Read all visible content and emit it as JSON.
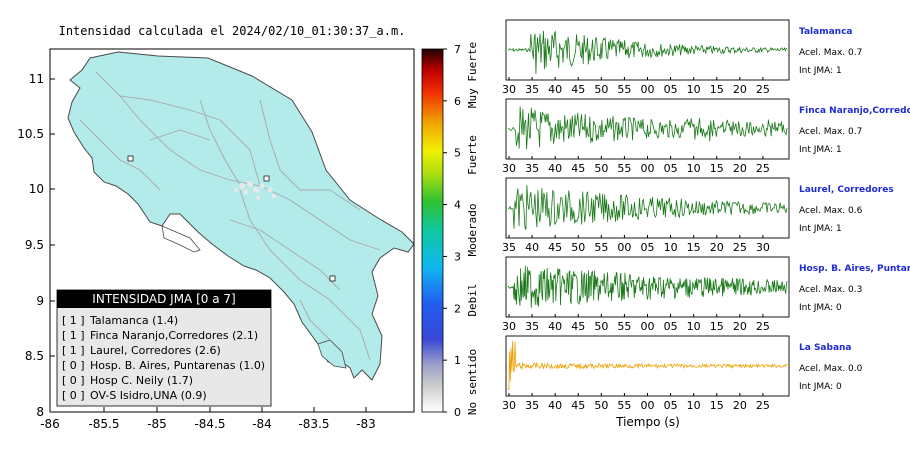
{
  "map": {
    "title": "Intensidad calculada el 2024/02/10_01:30:37_a.m.",
    "x_ticks": [
      "-86",
      "-85.5",
      "-85",
      "-84.5",
      "-84",
      "-83.5",
      "-83"
    ],
    "y_ticks": [
      "11",
      "10.5",
      "10",
      "9.5",
      "9",
      "8.5",
      "8"
    ],
    "land_color": "#b3eaea",
    "sea_color": "#ffffff"
  },
  "colorbar": {
    "ticks": [
      "0",
      "1",
      "2",
      "3",
      "4",
      "5",
      "6",
      "7"
    ],
    "categories": [
      "No sentido",
      "Debil",
      "Moderado",
      "Fuerte",
      "Muy Fuerte"
    ]
  },
  "legend": {
    "title": "INTENSIDAD JMA [0 a 7]",
    "items": [
      {
        "code": "[ 1 ]",
        "text": "Talamanca (1.4)"
      },
      {
        "code": "[ 1 ]",
        "text": "Finca Naranjo,Corredores (2.1)"
      },
      {
        "code": "[ 1 ]",
        "text": "Laurel, Corredores (2.6)"
      },
      {
        "code": "[ 0 ]",
        "text": "Hosp. B. Aires, Puntarenas (1.0)"
      },
      {
        "code": "[ 0 ]",
        "text": "Hosp C. Neily (1.7)"
      },
      {
        "code": "[ 0 ]",
        "text": "OV-S Isidro,UNA (0.9)"
      }
    ]
  },
  "waveforms": {
    "xlabel": "Tiempo (s)",
    "stations": [
      {
        "name": "Talamanca",
        "accel": "Acel. Max. 0.7",
        "int": "Int JMA: 1",
        "color": "#1a7a1a",
        "ticks": [
          "30",
          "35",
          "40",
          "45",
          "50",
          "55",
          "00",
          "05",
          "10",
          "15",
          "20",
          "25"
        ]
      },
      {
        "name": "Finca Naranjo,Corredores",
        "accel": "Acel. Max. 0.7",
        "int": "Int JMA: 1",
        "color": "#1a7a1a",
        "ticks": [
          "30",
          "35",
          "40",
          "45",
          "50",
          "55",
          "00",
          "05",
          "10",
          "15",
          "20",
          "25"
        ]
      },
      {
        "name": "Laurel, Corredores",
        "accel": "Acel. Max. 0.6",
        "int": "Int JMA: 1",
        "color": "#1a7a1a",
        "ticks": [
          "35",
          "40",
          "45",
          "50",
          "55",
          "00",
          "05",
          "10",
          "15",
          "20",
          "25",
          "30"
        ]
      },
      {
        "name": "Hosp. B. Aires, Puntarenas",
        "accel": "Acel. Max. 0.3",
        "int": "Int JMA: 0",
        "color": "#1a7a1a",
        "ticks": [
          "30",
          "35",
          "40",
          "45",
          "50",
          "55",
          "00",
          "05",
          "10",
          "15",
          "20",
          "25"
        ]
      },
      {
        "name": "La Sabana",
        "accel": "Acel. Max. 0.0",
        "int": "Int JMA: 0",
        "color": "#f0a000",
        "ticks": [
          "30",
          "35",
          "40",
          "45",
          "50",
          "55",
          "00",
          "05",
          "10",
          "15",
          "20",
          "25"
        ]
      }
    ]
  },
  "chart_data": [
    {
      "type": "heatmap",
      "title": "Intensidad calculada el 2024/02/10_01:30:37_a.m.",
      "xlim": [
        -86,
        -82.6
      ],
      "ylim": [
        8,
        11.3
      ],
      "colorbar_range": [
        0,
        7
      ],
      "stations_intensity": [
        {
          "name": "Talamanca",
          "jma": 1,
          "value": 1.4
        },
        {
          "name": "Finca Naranjo,Corredores",
          "jma": 1,
          "value": 2.1
        },
        {
          "name": "Laurel, Corredores",
          "jma": 1,
          "value": 2.6
        },
        {
          "name": "Hosp. B. Aires, Puntarenas",
          "jma": 0,
          "value": 1.0
        },
        {
          "name": "Hosp C. Neily",
          "jma": 0,
          "value": 1.7
        },
        {
          "name": "OV-S Isidro,UNA",
          "jma": 0,
          "value": 0.9
        }
      ]
    },
    {
      "type": "line",
      "xlabel": "Tiempo (s)",
      "series": [
        {
          "name": "Talamanca",
          "peak_accel": 0.7,
          "jma": 1
        },
        {
          "name": "Finca Naranjo,Corredores",
          "peak_accel": 0.7,
          "jma": 1
        },
        {
          "name": "Laurel, Corredores",
          "peak_accel": 0.6,
          "jma": 1
        },
        {
          "name": "Hosp. B. Aires, Puntarenas",
          "peak_accel": 0.3,
          "jma": 0
        },
        {
          "name": "La Sabana",
          "peak_accel": 0.0,
          "jma": 0
        }
      ]
    }
  ]
}
